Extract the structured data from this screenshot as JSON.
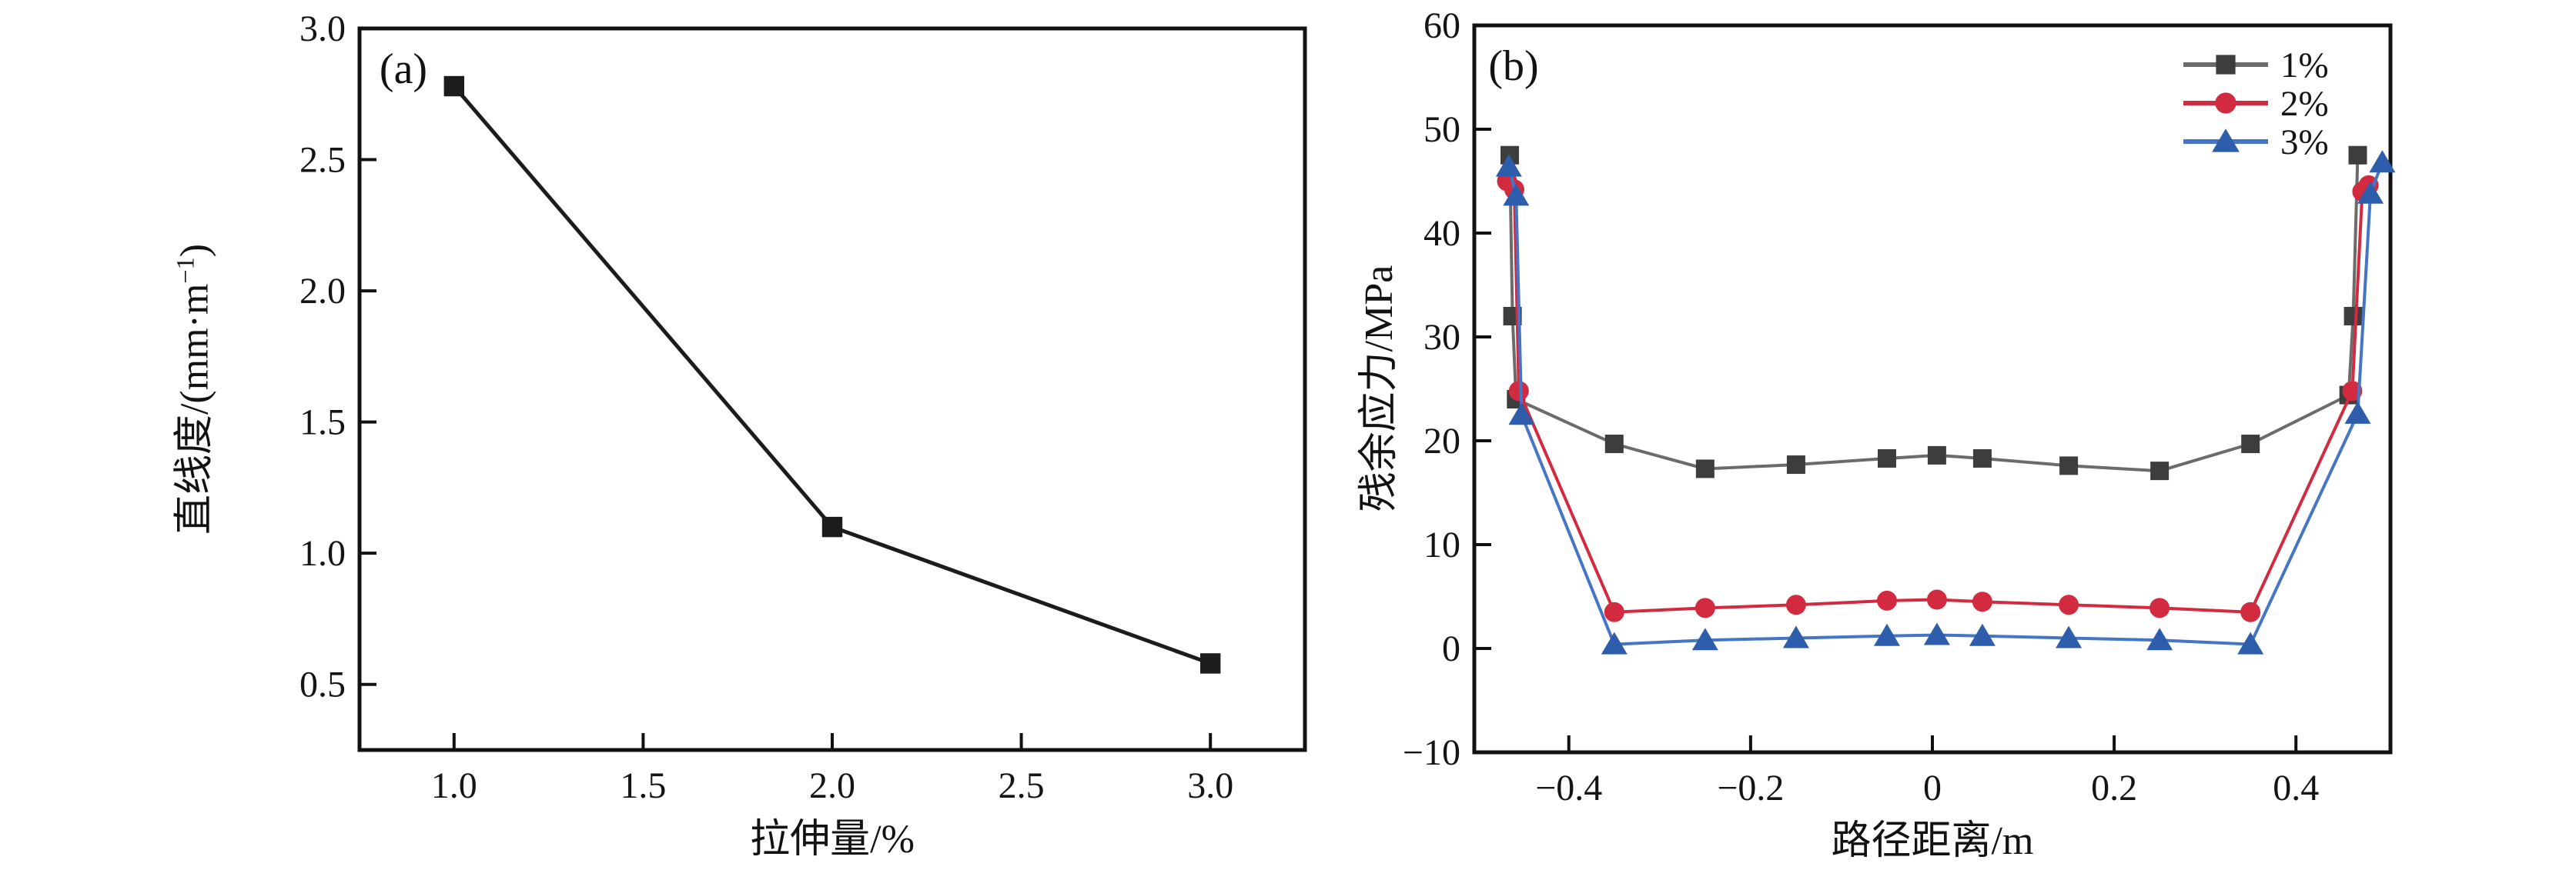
{
  "figure": {
    "background": "#ffffff"
  },
  "chart_data": [
    {
      "type": "line",
      "panel_label": "(a)",
      "xlabel": "拉伸量/%",
      "ylabel_prefix": "直线度/(mm·m",
      "ylabel_sup": "−1",
      "ylabel_suffix": ")",
      "xlim": [
        0.75,
        3.25
      ],
      "ylim": [
        0.25,
        3.0
      ],
      "xticks": [
        {
          "v": 1.0,
          "label": "1.0"
        },
        {
          "v": 1.5,
          "label": "1.5"
        },
        {
          "v": 2.0,
          "label": "2.0"
        },
        {
          "v": 2.5,
          "label": "2.5"
        },
        {
          "v": 3.0,
          "label": "3.0"
        }
      ],
      "yticks": [
        {
          "v": 0.5,
          "label": "0.5"
        },
        {
          "v": 1.0,
          "label": "1.0"
        },
        {
          "v": 1.5,
          "label": "1.5"
        },
        {
          "v": 2.0,
          "label": "2.0"
        },
        {
          "v": 2.5,
          "label": "2.5"
        },
        {
          "v": 3.0,
          "label": "3.0"
        }
      ],
      "grid": false,
      "marker": "square",
      "color": "#1c1c1c",
      "x": [
        1.0,
        2.0,
        3.0
      ],
      "values": [
        2.78,
        1.1,
        0.58
      ]
    },
    {
      "type": "line",
      "panel_label": "(b)",
      "xlabel": "路径距离/m",
      "ylabel": "残余应力/MPa",
      "xlim": [
        -0.504,
        0.504
      ],
      "ylim": [
        -10,
        60
      ],
      "xticks": [
        {
          "v": -0.4,
          "label": "−0.4"
        },
        {
          "v": -0.2,
          "label": "−0.2"
        },
        {
          "v": 0.0,
          "label": "0"
        },
        {
          "v": 0.2,
          "label": "0.2"
        },
        {
          "v": 0.4,
          "label": "0.4"
        }
      ],
      "yticks": [
        {
          "v": -10,
          "label": "−10"
        },
        {
          "v": 0,
          "label": "0"
        },
        {
          "v": 10,
          "label": "10"
        },
        {
          "v": 20,
          "label": "20"
        },
        {
          "v": 30,
          "label": "30"
        },
        {
          "v": 40,
          "label": "40"
        },
        {
          "v": 50,
          "label": "50"
        },
        {
          "v": 60,
          "label": "60"
        }
      ],
      "grid": false,
      "legend_position": "top-right",
      "series": [
        {
          "name": "1%",
          "marker": "square",
          "marker_color": "#3d3d3d",
          "line_color": "#6b6b6b",
          "points": [
            [
              -0.465,
              47.5
            ],
            [
              -0.462,
              32.0
            ],
            [
              -0.458,
              24.0
            ],
            [
              -0.35,
              19.7
            ],
            [
              -0.25,
              17.3
            ],
            [
              -0.15,
              17.7
            ],
            [
              -0.05,
              18.3
            ],
            [
              0.005,
              18.6
            ],
            [
              0.055,
              18.3
            ],
            [
              0.15,
              17.6
            ],
            [
              0.25,
              17.1
            ],
            [
              0.35,
              19.7
            ],
            [
              0.458,
              24.4
            ],
            [
              0.463,
              32.0
            ],
            [
              0.468,
              47.5
            ]
          ]
        },
        {
          "name": "2%",
          "marker": "circle",
          "marker_color": "#d22b3f",
          "line_color": "#d22b3f",
          "points": [
            [
              -0.468,
              45.0
            ],
            [
              -0.46,
              44.2
            ],
            [
              -0.455,
              24.8
            ],
            [
              -0.35,
              3.5
            ],
            [
              -0.25,
              3.9
            ],
            [
              -0.15,
              4.2
            ],
            [
              -0.05,
              4.6
            ],
            [
              0.005,
              4.7
            ],
            [
              0.055,
              4.5
            ],
            [
              0.15,
              4.2
            ],
            [
              0.25,
              3.9
            ],
            [
              0.35,
              3.5
            ],
            [
              0.462,
              24.8
            ],
            [
              0.473,
              44.0
            ],
            [
              0.48,
              44.6
            ]
          ]
        },
        {
          "name": "3%",
          "marker": "triangle",
          "marker_color": "#2d5dab",
          "line_color": "#4575c4",
          "points": [
            [
              -0.466,
              46.4
            ],
            [
              -0.458,
              43.6
            ],
            [
              -0.452,
              22.5
            ],
            [
              -0.35,
              0.4
            ],
            [
              -0.25,
              0.8
            ],
            [
              -0.15,
              1.0
            ],
            [
              -0.05,
              1.2
            ],
            [
              0.005,
              1.3
            ],
            [
              0.055,
              1.2
            ],
            [
              0.15,
              1.0
            ],
            [
              0.25,
              0.8
            ],
            [
              0.35,
              0.4
            ],
            [
              0.468,
              22.6
            ],
            [
              0.482,
              43.8
            ],
            [
              0.495,
              46.8
            ]
          ]
        }
      ]
    }
  ]
}
